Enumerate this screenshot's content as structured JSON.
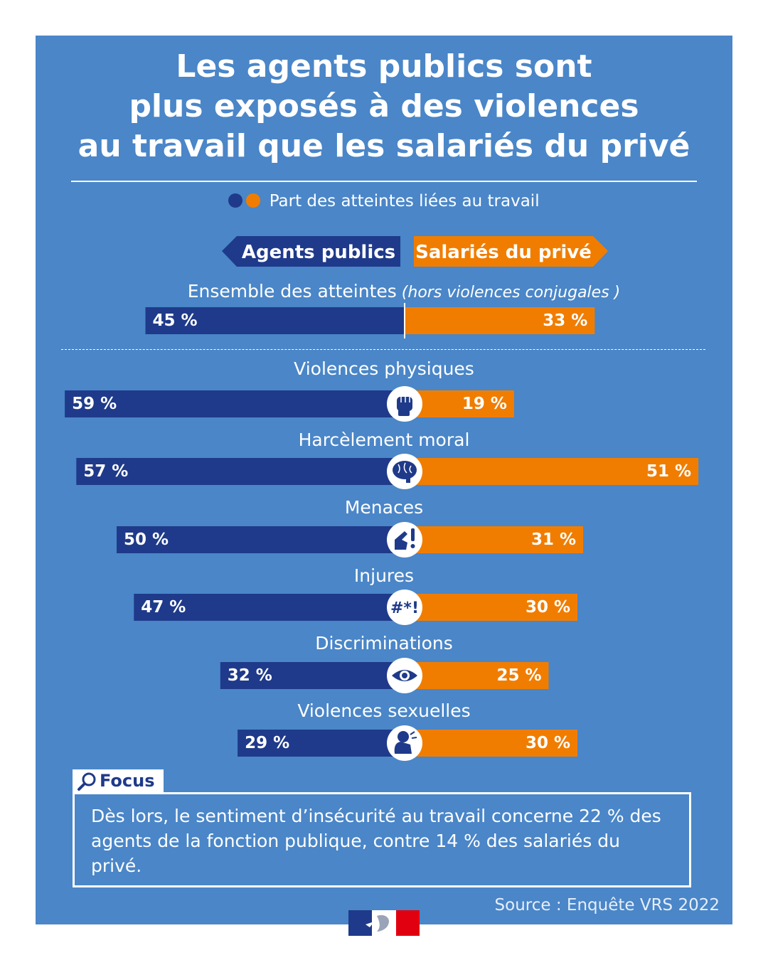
{
  "header": {
    "title_lines": [
      "Les agents publics sont",
      "plus exposés à des violences",
      "au travail que les salariés du privé"
    ]
  },
  "legend": {
    "text": "Part des atteintes liées au travail"
  },
  "tags": {
    "left": "Agents publics",
    "right": "Salariés du privé"
  },
  "colors": {
    "public": "#1f3a8a",
    "private": "#f07d00",
    "panel": "#4a86c8"
  },
  "chart_data": {
    "type": "bar",
    "orientation": "horizontal-diverging",
    "series": [
      {
        "name": "Agents publics",
        "values": [
          45,
          59,
          57,
          50,
          47,
          32,
          29
        ]
      },
      {
        "name": "Salariés du privé",
        "values": [
          33,
          19,
          51,
          31,
          30,
          25,
          30
        ]
      }
    ],
    "categories": [
      "Ensemble des atteintes",
      "Violences physiques",
      "Harcèlement moral",
      "Menaces",
      "Injures",
      "Discriminations",
      "Violences sexuelles"
    ],
    "category_note": "(hors violences conjugales )",
    "value_labels_public": [
      "45 %",
      "59 %",
      "57 %",
      "50 %",
      "47 %",
      "32 %",
      "29 %"
    ],
    "value_labels_private": [
      "33 %",
      "19 %",
      "51 %",
      "31 %",
      "30 %",
      "25 %",
      "30 %"
    ],
    "icons": [
      "",
      "fist-icon",
      "brain-icon",
      "pointing-finger-icon",
      "grawlix-icon",
      "eye-icon",
      "crouching-person-icon"
    ],
    "unit": "%"
  },
  "focus": {
    "label": "Focus",
    "text": "Dès lors, le sentiment d’insécurité au travail concerne 22 % des agents de la fonction publique, contre 14 % des salariés du privé."
  },
  "source": "Source : Enquête VRS 2022"
}
